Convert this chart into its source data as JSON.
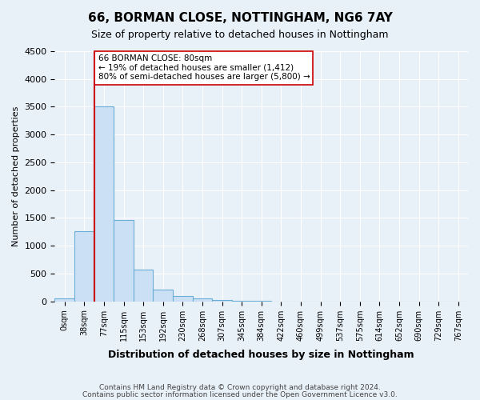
{
  "title": "66, BORMAN CLOSE, NOTTINGHAM, NG6 7AY",
  "subtitle": "Size of property relative to detached houses in Nottingham",
  "xlabel": "Distribution of detached houses by size in Nottingham",
  "ylabel": "Number of detached properties",
  "footer_line1": "Contains HM Land Registry data © Crown copyright and database right 2024.",
  "footer_line2": "Contains public sector information licensed under the Open Government Licence v3.0.",
  "bin_labels": [
    "0sqm",
    "38sqm",
    "77sqm",
    "115sqm",
    "153sqm",
    "192sqm",
    "230sqm",
    "268sqm",
    "307sqm",
    "345sqm",
    "384sqm",
    "422sqm",
    "460sqm",
    "499sqm",
    "537sqm",
    "575sqm",
    "614sqm",
    "652sqm",
    "690sqm",
    "729sqm",
    "767sqm"
  ],
  "bar_values": [
    50,
    1260,
    3500,
    1470,
    570,
    210,
    90,
    55,
    30,
    10,
    5,
    2,
    1,
    0,
    0,
    0,
    0,
    0,
    0,
    0,
    0
  ],
  "ylim": [
    0,
    4500
  ],
  "yticks": [
    0,
    500,
    1000,
    1500,
    2000,
    2500,
    3000,
    3500,
    4000,
    4500
  ],
  "bar_color": "#cce0f5",
  "bar_edge_color": "#6aaed6",
  "property_line_index": 2,
  "property_line_color": "#cc0000",
  "annotation_text": "66 BORMAN CLOSE: 80sqm\n← 19% of detached houses are smaller (1,412)\n80% of semi-detached houses are larger (5,800) →",
  "annotation_box_color": "#ffffff",
  "annotation_box_edge": "#cc0000",
  "bg_color": "#e8f0f8",
  "plot_bg_color": "#e8f0f8",
  "grid_color": "#ffffff"
}
